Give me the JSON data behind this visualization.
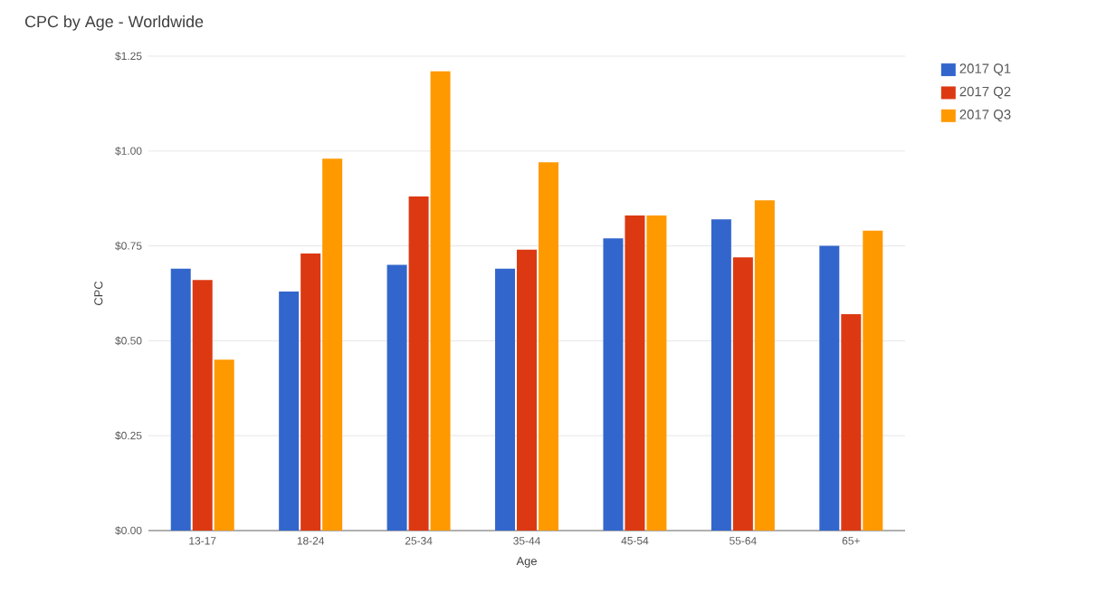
{
  "chart_data": {
    "type": "bar",
    "title": "CPC by Age - Worldwide",
    "xlabel": "Age",
    "ylabel": "CPC",
    "categories": [
      "13-17",
      "18-24",
      "25-34",
      "35-44",
      "45-54",
      "55-64",
      "65+"
    ],
    "series": [
      {
        "name": "2017 Q1",
        "color": "#3366cc",
        "values": [
          0.69,
          0.63,
          0.7,
          0.69,
          0.77,
          0.82,
          0.75
        ]
      },
      {
        "name": "2017 Q2",
        "color": "#dc3912",
        "values": [
          0.66,
          0.73,
          0.88,
          0.74,
          0.83,
          0.72,
          0.57
        ]
      },
      {
        "name": "2017 Q3",
        "color": "#ff9900",
        "values": [
          0.45,
          0.98,
          1.21,
          0.97,
          0.83,
          0.87,
          0.79
        ]
      }
    ],
    "ylim": [
      0,
      1.25
    ],
    "yticks": [
      {
        "value": 0,
        "label": "$0.00"
      },
      {
        "value": 0.25,
        "label": "$0.25"
      },
      {
        "value": 0.5,
        "label": "$0.50"
      },
      {
        "value": 0.75,
        "label": "$0.75"
      },
      {
        "value": 1,
        "label": "$1.00"
      },
      {
        "value": 1.25,
        "label": "$1.25"
      }
    ],
    "grid": "y",
    "legend": "top right"
  }
}
